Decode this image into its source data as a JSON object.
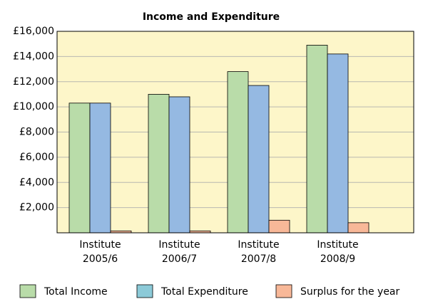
{
  "chart_data": {
    "type": "bar",
    "title": "Income and Expenditure",
    "categories": [
      "Institute 2005/6",
      "Institute 2006/7",
      "Institute 2007/8",
      "Institute 2008/9"
    ],
    "series": [
      {
        "name": "Total Income",
        "color": "#b9dca9",
        "legend_color": "#b9dca9",
        "values": [
          10300,
          11000,
          12800,
          14900
        ]
      },
      {
        "name": "Total Expenditure",
        "color": "#95b9e2",
        "legend_color": "#8ccad8",
        "values": [
          10300,
          10800,
          11700,
          14200
        ]
      },
      {
        "name": "Surplus for the year",
        "color": "#f8b898",
        "legend_color": "#f8b898",
        "values": [
          150,
          150,
          1000,
          800
        ]
      }
    ],
    "ylim": [
      0,
      16000
    ],
    "yticks": [
      {
        "value": 2000,
        "label": "£2,000"
      },
      {
        "value": 4000,
        "label": "£4,000"
      },
      {
        "value": 6000,
        "label": "£6,000"
      },
      {
        "value": 8000,
        "label": "£8,000"
      },
      {
        "value": 10000,
        "label": "£10,000"
      },
      {
        "value": 12000,
        "label": "£12,000"
      },
      {
        "value": 14000,
        "label": "£14,000"
      },
      {
        "value": 16000,
        "label": "£16,000"
      }
    ],
    "grid": true,
    "background": "#fdf6c9",
    "legend": "bottom"
  }
}
